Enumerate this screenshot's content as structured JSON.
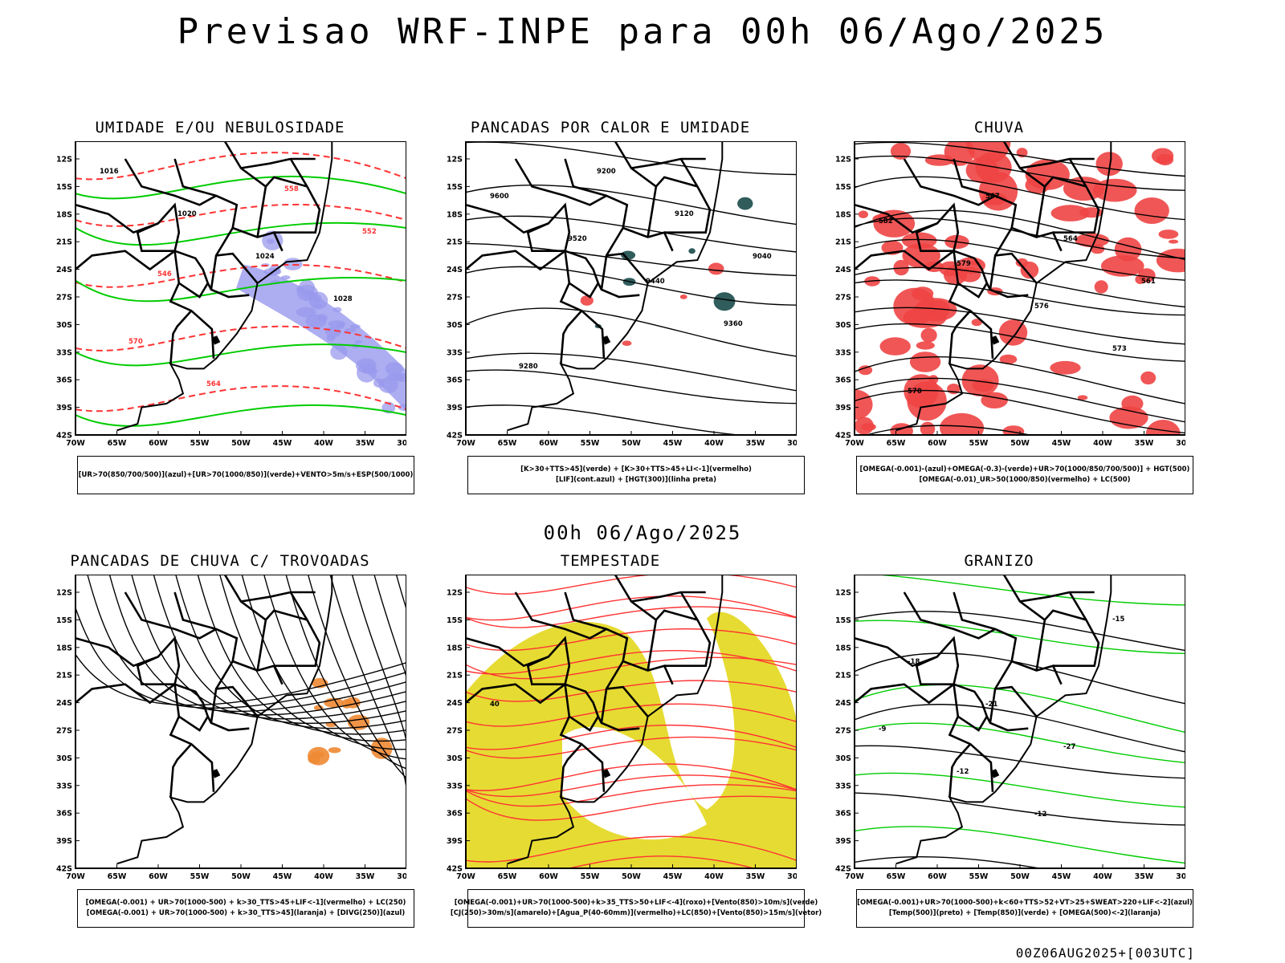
{
  "page": {
    "title": "Previsao WRF-INPE  para 00h 06/Ago/2025",
    "subtitle": "00h 06/Ago/2025",
    "footer": "00Z06AUG2025+[003UTC]"
  },
  "axes": {
    "lat_labels": [
      "12S",
      "15S",
      "18S",
      "21S",
      "24S",
      "27S",
      "30S",
      "33S",
      "36S",
      "39S",
      "42S"
    ],
    "lon_labels": [
      "70W",
      "65W",
      "60W",
      "55W",
      "50W",
      "45W",
      "40W",
      "35W",
      "30W"
    ]
  },
  "panels": [
    {
      "id": "umidade",
      "title": "UMIDADE E/OU NEBULOSIDADE",
      "legend": [
        "[UR>70(850/700/500)](azul)+[UR>70(1000/850)](verde)+VENTO>5m/s+ESP(500/1000)"
      ],
      "labels": [
        "1016",
        "1020",
        "1024",
        "1028",
        "570",
        "564",
        "558",
        "552",
        "546"
      ],
      "colors": {
        "primary": "#00cc00",
        "secondary": "#ff3333",
        "fill": "#9999ee"
      }
    },
    {
      "id": "pancadas-calor",
      "title": "PANCADAS POR CALOR E UMIDADE",
      "legend": [
        "[K>30+TTS>45](verde) + [K>30+TTS>45+LI<-1](vermelho)",
        "[LIF](cont.azul) + [HGT(300)](linha preta)"
      ],
      "labels": [
        "9600",
        "9520",
        "9440",
        "9360",
        "9280",
        "9200",
        "9120",
        "9040"
      ],
      "colors": {
        "primary": "#000000",
        "secondary": "#1a4a4a",
        "fill": "#ee4444"
      }
    },
    {
      "id": "chuva",
      "title": "CHUVA",
      "legend": [
        "[OMEGA(-0.001)-(azul)+OMEGA(-0.3)-(verde)+UR>70(1000/850/700/500)] + HGT(500)",
        "[OMEGA(-0.01)_UR>50(1000/850)(vermelho) + LC(500)"
      ],
      "labels": [
        "582",
        "579",
        "576",
        "573",
        "570",
        "567",
        "564",
        "561"
      ],
      "colors": {
        "primary": "#000000",
        "secondary": "#2255ee",
        "fill": "#ee4444"
      }
    },
    {
      "id": "pancadas-trovoadas",
      "title": "PANCADAS DE CHUVA C/ TROVOADAS",
      "legend": [
        "[OMEGA(-0.001) + UR>70(1000-500) + k>30_TTS>45+LIF<-1](vermelho) + LC(250)",
        "[OMEGA(-0.001) + UR>70(1000-500) + k>30_TTS>45](laranja) + [DIVG(250)](azul)"
      ],
      "labels": [],
      "colors": {
        "primary": "#000000",
        "secondary": "#2255ee",
        "fill": "#ee8833"
      }
    },
    {
      "id": "tempestade",
      "title": "TEMPESTADE",
      "legend": [
        "[OMEGA(-0.001)+UR>70(1000-500)+k>35_TTS>50+LIF<-4](roxo)+[Vento(850)>10m/s](verde)",
        "[CJ(250)>30m/s](amarelo)+[Agua_P(40-60mm)](vermelho)+LC(850)+[Vento(850)>15m/s](vetor)"
      ],
      "labels": [
        "40"
      ],
      "colors": {
        "primary": "#ff3333",
        "secondary": "#00bb00",
        "fill": "#e6db33"
      }
    },
    {
      "id": "granizo",
      "title": "GRANIZO",
      "legend": [
        "[OMEGA(-0.001)+UR>70(1000-500)+k<60+TTS>52+VT>25+SWEAT>220+LIF<-2](azul)",
        "[Temp(500)](preto) + [Temp(850)](verde) + [OMEGA(500)<-2](laranja)"
      ],
      "labels": [
        "-9",
        "-12",
        "-12",
        "-15",
        "-18",
        "-21",
        "-27"
      ],
      "colors": {
        "primary": "#000000",
        "secondary": "#00cc00",
        "fill": "#ee8833"
      }
    }
  ]
}
